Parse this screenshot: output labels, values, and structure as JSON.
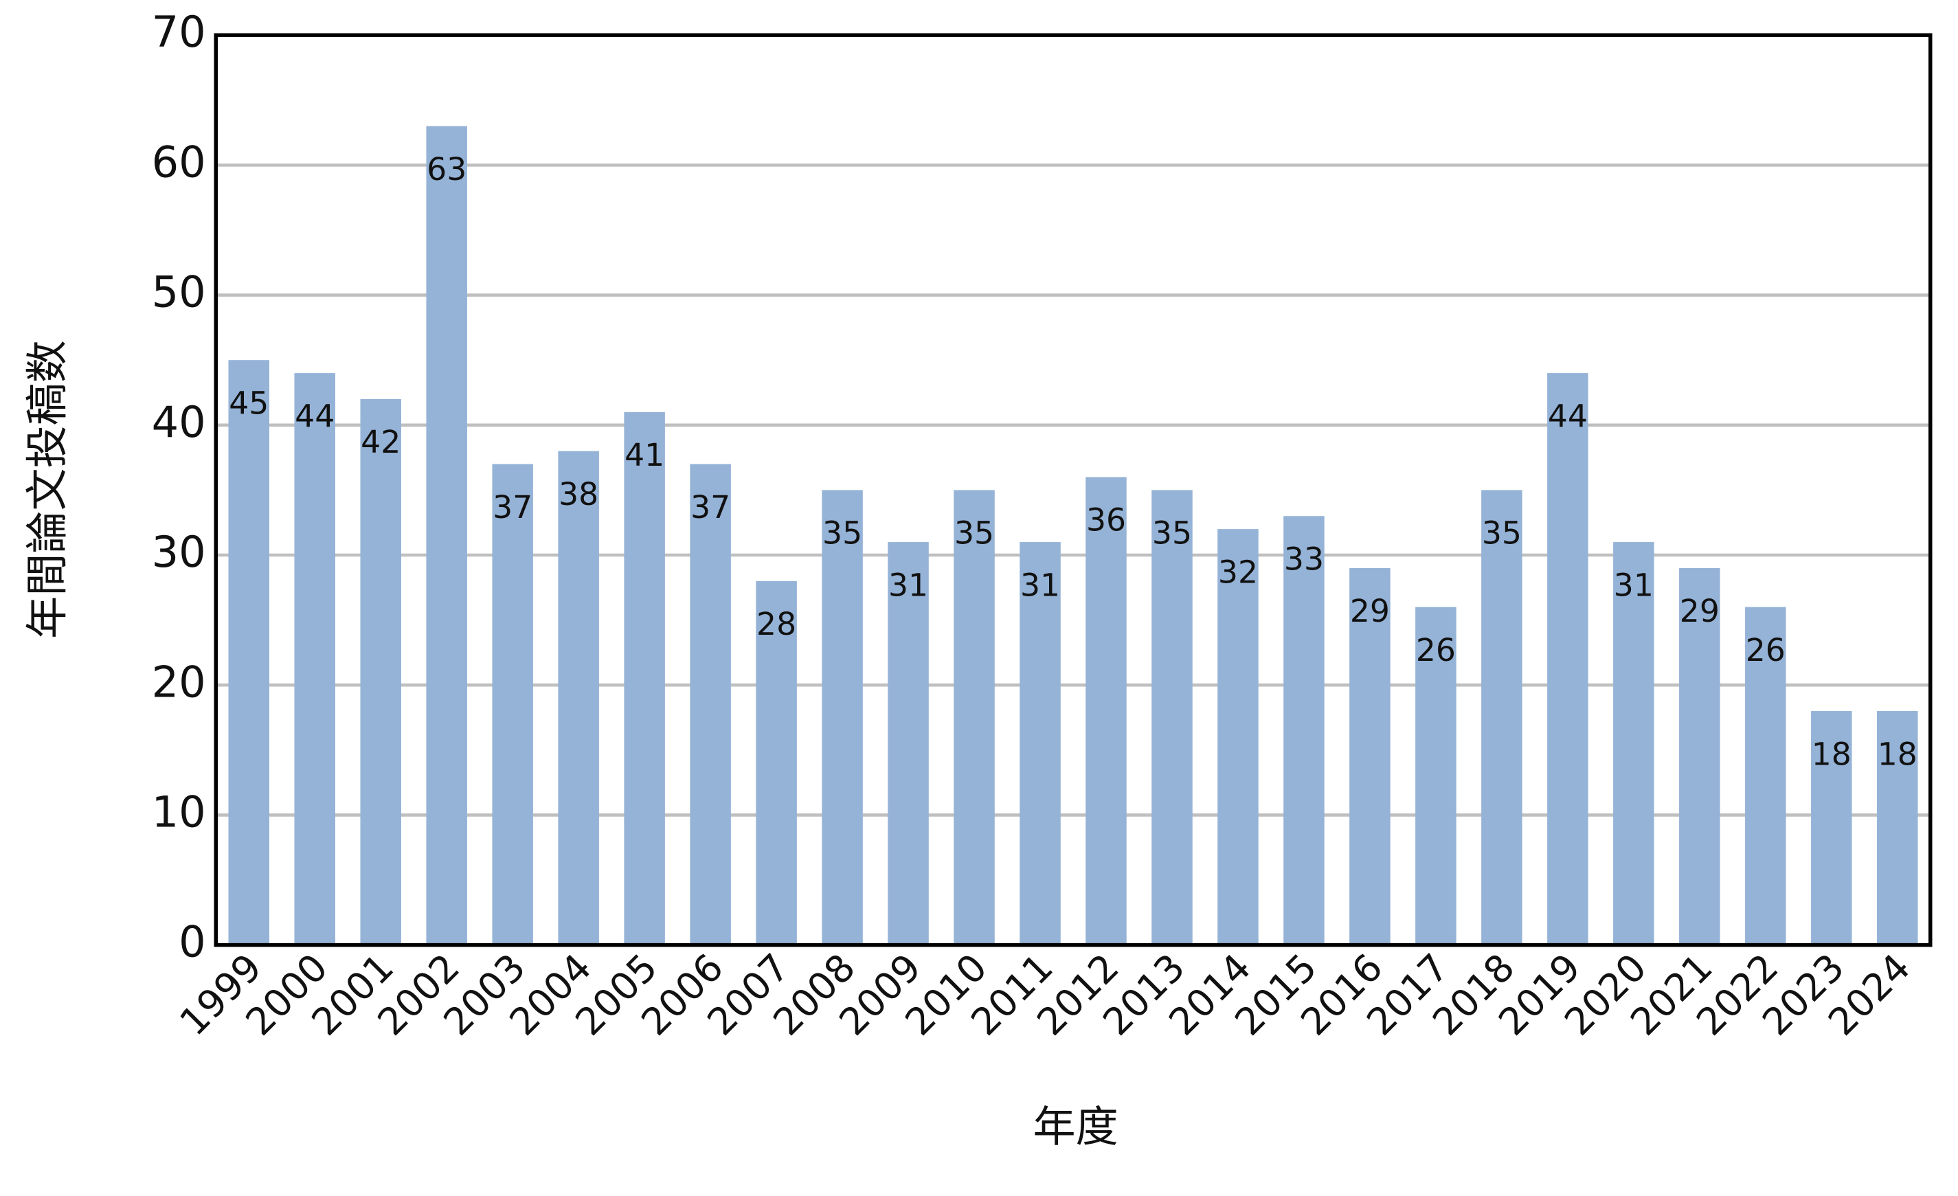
{
  "chart_data": {
    "type": "bar",
    "x_label": "年度",
    "y_label": "年間論文投稿数",
    "categories": [
      "1999",
      "2000",
      "2001",
      "2002",
      "2003",
      "2004",
      "2005",
      "2006",
      "2007",
      "2008",
      "2009",
      "2010",
      "2011",
      "2012",
      "2013",
      "2014",
      "2015",
      "2016",
      "2017",
      "2018",
      "2019",
      "2020",
      "2021",
      "2022",
      "2023",
      "2024"
    ],
    "values": [
      45,
      44,
      42,
      63,
      37,
      38,
      41,
      37,
      28,
      35,
      31,
      35,
      31,
      36,
      35,
      32,
      33,
      29,
      26,
      35,
      44,
      31,
      29,
      26,
      18,
      18
    ],
    "color": "#95b3d7",
    "ylim": [
      0,
      70
    ],
    "yticks": [
      0,
      10,
      20,
      30,
      40,
      50,
      60,
      70
    ],
    "grid": true
  }
}
